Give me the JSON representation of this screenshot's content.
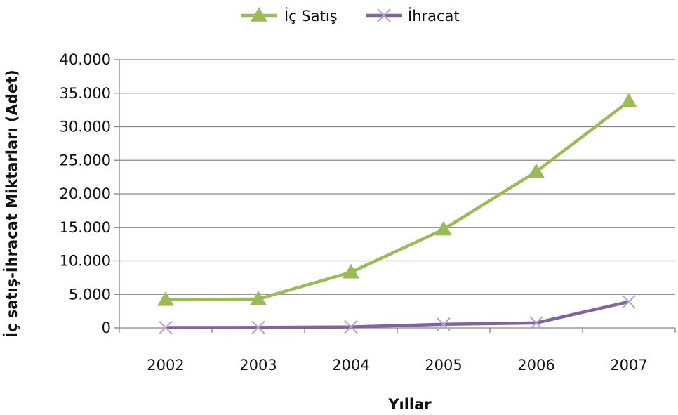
{
  "chart_data": {
    "type": "line",
    "categories": [
      "2002",
      "2003",
      "2004",
      "2005",
      "2006",
      "2007"
    ],
    "series": [
      {
        "name": "İç Satış",
        "values": [
          4200,
          4300,
          8300,
          14700,
          23300,
          33800
        ],
        "color": "#9bbb59",
        "marker": "triangle"
      },
      {
        "name": "İhracat",
        "values": [
          50,
          70,
          150,
          550,
          750,
          3900
        ],
        "color": "#8064a2",
        "marker": "x"
      }
    ],
    "ylim": [
      0,
      40000
    ],
    "yticks": [
      0,
      5000,
      10000,
      15000,
      20000,
      25000,
      30000,
      35000,
      40000
    ],
    "ytick_labels": [
      "0",
      "5.000",
      "10.000",
      "15.000",
      "20.000",
      "25.000",
      "30.000",
      "35.000",
      "40.000"
    ],
    "xlabel": "Yıllar",
    "ylabel": "İç satış-İhracat Miktarları (Adet)",
    "grid": true,
    "legend_position": "top-center"
  }
}
